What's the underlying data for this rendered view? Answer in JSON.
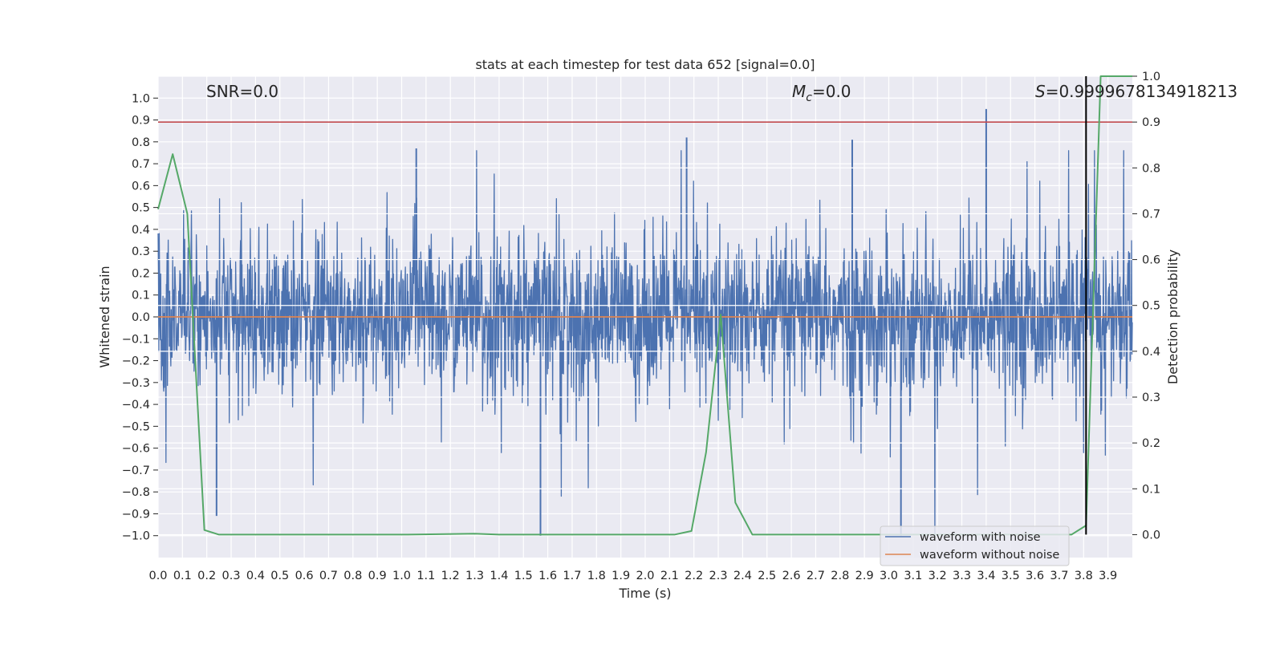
{
  "chart_data": {
    "type": "line",
    "title": "stats at each timestep for test data 652 [signal=0.0]",
    "xlabel": "Time (s)",
    "ylabel": "Whitened strain",
    "y2label": "Detection probability",
    "xlim": [
      0.0,
      4.0
    ],
    "ylim": [
      -1.1,
      1.1
    ],
    "y2lim": [
      -0.05,
      1.0
    ],
    "x_ticks": [
      0.0,
      0.1,
      0.2,
      0.3,
      0.4,
      0.5,
      0.6,
      0.7,
      0.8,
      0.9,
      1.0,
      1.1,
      1.2,
      1.3,
      1.4,
      1.5,
      1.6,
      1.7,
      1.8,
      1.9,
      2.0,
      2.1,
      2.2,
      2.3,
      2.4,
      2.5,
      2.6,
      2.7,
      2.8,
      2.9,
      3.0,
      3.1,
      3.2,
      3.3,
      3.4,
      3.5,
      3.6,
      3.7,
      3.8,
      3.9
    ],
    "y_ticks": [
      -1.0,
      -0.9,
      -0.8,
      -0.7,
      -0.6,
      -0.5,
      -0.4,
      -0.3,
      -0.2,
      -0.1,
      0.0,
      0.1,
      0.2,
      0.3,
      0.4,
      0.5,
      0.6,
      0.7,
      0.8,
      0.9,
      1.0
    ],
    "y2_ticks": [
      0.0,
      0.1,
      0.2,
      0.3,
      0.4,
      0.5,
      0.6,
      0.7,
      0.8,
      0.9,
      1.0
    ],
    "grid": true,
    "legend_position": "bottom-right",
    "annotations": {
      "snr": "SNR=0.0",
      "mc_symbol": "M",
      "mc_subscript": "c",
      "mc_value": "=0.0",
      "s_symbol": "S",
      "s_value": "=0.9999678134918213"
    },
    "series": [
      {
        "name": "waveform with noise",
        "axis": "left",
        "color": "#4c72b0",
        "style": "noise",
        "amplitude_range": [
          -1.0,
          0.95
        ],
        "notable_spikes": [
          {
            "x": 0.24,
            "y": -0.91
          },
          {
            "x": 1.57,
            "y": -1.0
          },
          {
            "x": 2.17,
            "y": 0.82
          },
          {
            "x": 2.85,
            "y": 0.81
          },
          {
            "x": 3.4,
            "y": 0.95
          },
          {
            "x": 3.05,
            "y": -1.0
          },
          {
            "x": 1.06,
            "y": 0.77
          }
        ]
      },
      {
        "name": "waveform without noise",
        "axis": "left",
        "color": "#dd8452",
        "x": [
          0.0,
          4.0
        ],
        "y": [
          0.0,
          0.0
        ]
      },
      {
        "name": "detection probability",
        "axis": "right",
        "color": "#55a868",
        "x": [
          0.0,
          0.06,
          0.12,
          0.19,
          0.25,
          0.5,
          1.0,
          1.3,
          1.4,
          2.0,
          2.12,
          2.19,
          2.25,
          2.31,
          2.37,
          2.44,
          2.5,
          3.0,
          3.5,
          3.75,
          3.81,
          3.87,
          3.93,
          4.0
        ],
        "y": [
          0.71,
          0.83,
          0.7,
          0.01,
          0.0,
          0.0,
          0.0,
          0.002,
          0.0,
          0.0,
          0.0,
          0.008,
          0.18,
          0.48,
          0.07,
          0.0,
          0.0,
          0.0,
          0.0,
          0.0,
          0.02,
          1.0,
          1.0,
          1.0
        ]
      }
    ],
    "reference_lines": {
      "threshold_right": 0.9,
      "threshold_color": "#c44e52",
      "vertical_x": 3.81,
      "vertical_y2_range": [
        0.0,
        1.0
      ],
      "vertical_color": "#000000"
    }
  }
}
